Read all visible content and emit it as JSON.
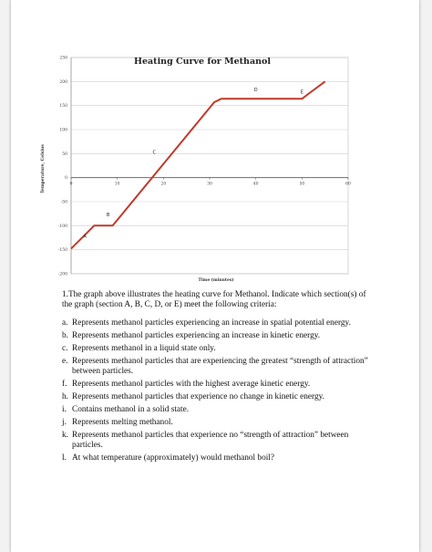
{
  "chart_data": {
    "type": "line",
    "title": "Heating Curve for Methanol",
    "xlabel": "Time (minutes)",
    "ylabel": "Temperature, Celsius",
    "xlim": [
      0,
      60
    ],
    "ylim": [
      -200,
      250
    ],
    "x_ticks": [
      "0",
      "10",
      "20",
      "30",
      "40",
      "50",
      "60"
    ],
    "y_ticks": [
      "250",
      "200",
      "150",
      "100",
      "50",
      "0",
      "-50",
      "-100",
      "-150",
      "-200"
    ],
    "grid": "horizontal",
    "line_color": "#c0392b",
    "series": [
      {
        "x": [
          0,
          5,
          9,
          31,
          32.5,
          45,
          46,
          46.5,
          50,
          51.5,
          55
        ],
        "y": [
          -148,
          -100,
          -100,
          157,
          164,
          164,
          164,
          164,
          164,
          175,
          200
        ]
      }
    ],
    "section_labels": [
      {
        "label": "A",
        "x": 3,
        "y": -125
      },
      {
        "label": "B",
        "x": 8,
        "y": -80
      },
      {
        "label": "C",
        "x": 18,
        "y": 50
      },
      {
        "label": "D",
        "x": 40,
        "y": 180
      },
      {
        "label": "E",
        "x": 50,
        "y": 175
      }
    ]
  },
  "questions": {
    "intro": "1.The graph above illustrates the heating curve for Methanol.  Indicate which section(s) of the graph (section A, B, C, D, or E) meet the following criteria:",
    "items": [
      {
        "letter": "a.",
        "text": "Represents methanol particles experiencing an increase in spatial potential energy."
      },
      {
        "letter": "b.",
        "text": "Represents methanol particles experiencing an increase in kinetic energy."
      },
      {
        "letter": "c.",
        "text": "Represents methanol in a liquid state only."
      },
      {
        "letter": "e.",
        "text": "Represents methanol particles that are experiencing the greatest “strength of attraction” between particles."
      },
      {
        "letter": "f.",
        "text": "Represents methanol particles with the highest average kinetic energy."
      },
      {
        "letter": "h.",
        "text": "Represents methanol particles that experience no change in kinetic energy."
      },
      {
        "letter": "i.",
        "text": "Contains methanol in a solid state."
      },
      {
        "letter": "j.",
        "text": "Represents melting methanol."
      },
      {
        "letter": "k.",
        "text": "Represents methanol particles that experience no “strength of attraction” between particles."
      },
      {
        "letter": "l.",
        "text": "At what temperature (approximately) would methanol boil?"
      }
    ]
  }
}
